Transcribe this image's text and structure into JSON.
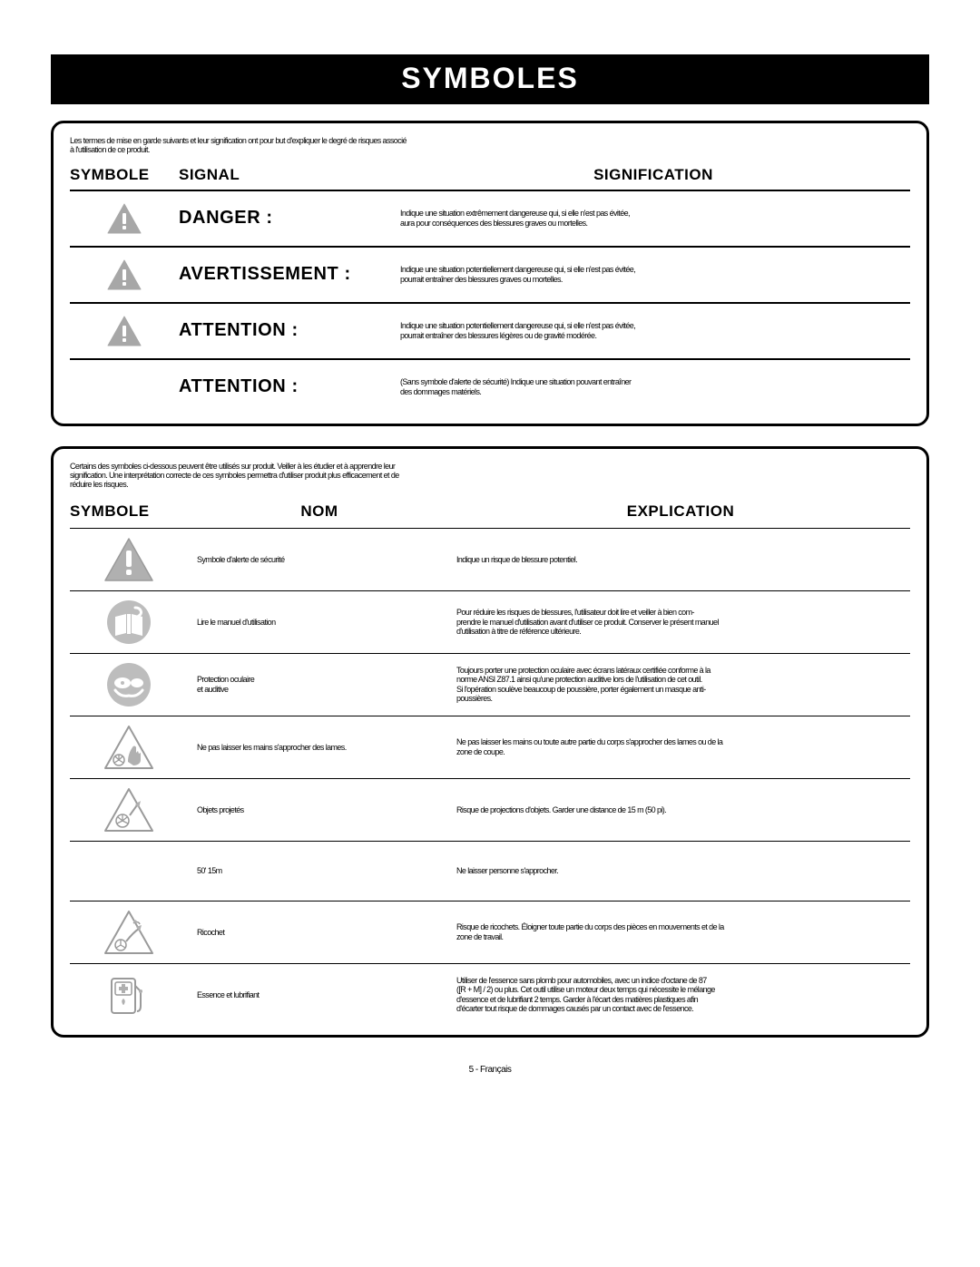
{
  "page_title": "SYMBOLES",
  "panel1": {
    "intro_l1": "Les termes de mise en garde suivants et leur signification ont pour but d'expliquer le degré de risques associé",
    "intro_l2": "à l'utilisation de ce produit.",
    "headers": {
      "c1": "SYMBOLE",
      "c2": "SIGNAL",
      "c3": "SIGNIFICATION"
    },
    "rows": [
      {
        "has_icon": true,
        "signal": "DANGER :",
        "meaning_l1": "Indique une situation extrêmement dangereuse qui, si elle n'est pas évitée,",
        "meaning_l2": "aura pour conséquences des blessures graves ou mortelles."
      },
      {
        "has_icon": true,
        "signal": "AVERTISSEMENT :",
        "meaning_l1": "Indique une situation potentiellement dangereuse qui, si elle n'est pas évitée,",
        "meaning_l2": "pourrait entraîner des blessures graves ou mortelles."
      },
      {
        "has_icon": true,
        "signal": "ATTENTION :",
        "meaning_l1": "Indique une situation potentiellement dangereuse qui, si elle n'est pas évitée,",
        "meaning_l2": "pourrait entraîner des blessures légères ou de gravité modérée."
      },
      {
        "has_icon": false,
        "signal": "ATTENTION :",
        "meaning_l1": "(Sans symbole d'alerte de sécurité) Indique une situation pouvant entraîner",
        "meaning_l2": "des dommages matériels."
      }
    ]
  },
  "panel2": {
    "intro_l1": "Certains des symboles ci-dessous peuvent être utilisés sur produit. Veiller à les étudier et à apprendre leur",
    "intro_l2": "signification. Une interprétation correcte de ces symboles permettra d'utiliser produit plus efficacement et de",
    "intro_l3": "réduire les risques.",
    "headers": {
      "c1": "SYMBOLE",
      "c2": "NOM",
      "c3": "EXPLICATION"
    },
    "rows": [
      {
        "icon": "alert",
        "nom_l1": "Symbole d'alerte de sécurité",
        "nom_l2": "",
        "exp_l1": "Indique un risque de blessure potentiel.",
        "exp_l2": "",
        "exp_l3": "",
        "exp_l4": ""
      },
      {
        "icon": "manual",
        "nom_l1": "Lire le manuel d'utilisation",
        "nom_l2": "",
        "exp_l1": "Pour réduire les risques de blessures, l'utilisateur doit lire et veiller à bien com-",
        "exp_l2": "prendre le manuel d'utilisation avant d'utiliser ce produit. Conserver le présent manuel",
        "exp_l3": "d'utilisation à titre de référence ultérieure.",
        "exp_l4": ""
      },
      {
        "icon": "eyeear",
        "nom_l1": "Protection oculaire",
        "nom_l2": "et auditive",
        "exp_l1": "Toujours porter une protection oculaire avec écrans latéraux certifiée conforme à la",
        "exp_l2": "norme ANSI Z87.1 ainsi qu'une protection auditive lors de l'utilisation de cet outil.",
        "exp_l3": "Si l'opération soulève beaucoup de poussière, porter également un masque anti-",
        "exp_l4": "poussières."
      },
      {
        "icon": "hand",
        "nom_l1": "Ne pas laisser les mains s'approcher des lames.",
        "nom_l2": "",
        "exp_l1": "Ne pas laisser les mains ou toute autre partie du corps s'approcher des lames ou de la",
        "exp_l2": "zone de coupe.",
        "exp_l3": "",
        "exp_l4": ""
      },
      {
        "icon": "objects",
        "nom_l1": "Objets projetés",
        "nom_l2": "",
        "exp_l1": "Risque de projections d'objets. Garder une distance de 15 m (50 pi).",
        "exp_l2": "",
        "exp_l3": "",
        "exp_l4": ""
      },
      {
        "icon": "none",
        "nom_l1": "50' 15m",
        "nom_l2": "",
        "exp_l1": "Ne laisser personne s'approcher.",
        "exp_l2": "",
        "exp_l3": "",
        "exp_l4": ""
      },
      {
        "icon": "ricochet",
        "nom_l1": "Ricochet",
        "nom_l2": "",
        "exp_l1": "Risque de ricochets. Éloigner toute partie du corps des pièces en mouvements et de la",
        "exp_l2": "zone de travail.",
        "exp_l3": "",
        "exp_l4": ""
      },
      {
        "icon": "fuel",
        "nom_l1": "Essence et lubrifiant",
        "nom_l2": "",
        "exp_l1": "Utiliser de l'essence sans plomb pour automobiles, avec un indice d'octane de 87",
        "exp_l2": "([R + M] / 2) ou plus. Cet outil utilise un moteur deux temps qui nécessite le mélange",
        "exp_l3": "d'essence et de lubrifiant 2 temps. Garder à l'écart des matières plastiques afin",
        "exp_l4": "d'écarter tout risque de dommages causés par un contact avec de l'essence."
      }
    ]
  },
  "page_number": "5 - Français",
  "colors": {
    "triangle_fill": "#a7a7a7",
    "triangle_stroke": "#a7a7a7",
    "icon_gray": "#b0b0b0",
    "icon_gray_stroke": "#9a9a9a",
    "circle_fill": "#bdbdbd"
  }
}
